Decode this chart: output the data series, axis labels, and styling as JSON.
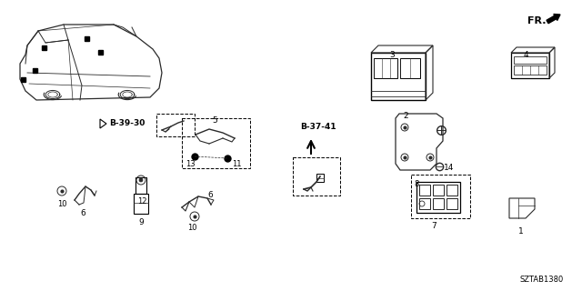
{
  "bg_color": "#ffffff",
  "part_code": "SZTAB1380",
  "fr_text": "FR.",
  "b3930_text": "B-39-30",
  "b3741_text": "B-37-41",
  "fig_width": 6.4,
  "fig_height": 3.2,
  "dpi": 100
}
